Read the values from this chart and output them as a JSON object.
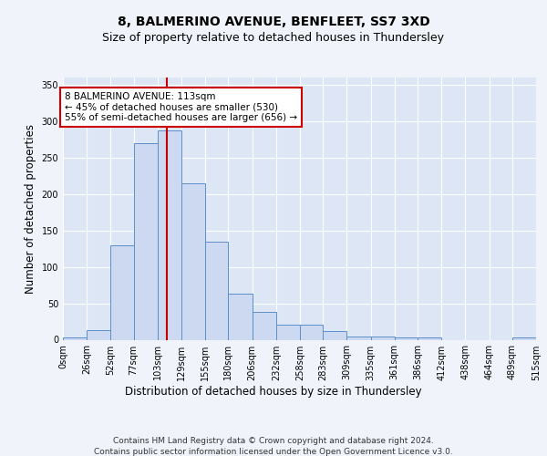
{
  "title1": "8, BALMERINO AVENUE, BENFLEET, SS7 3XD",
  "title2": "Size of property relative to detached houses in Thundersley",
  "xlabel": "Distribution of detached houses by size in Thundersley",
  "ylabel": "Number of detached properties",
  "bin_edges": [
    0,
    26,
    52,
    77,
    103,
    129,
    155,
    180,
    206,
    232,
    258,
    283,
    309,
    335,
    361,
    386,
    412,
    438,
    464,
    489,
    515
  ],
  "bar_heights": [
    3,
    13,
    130,
    270,
    288,
    215,
    135,
    63,
    38,
    21,
    21,
    12,
    4,
    5,
    3,
    3,
    0,
    0,
    0,
    3
  ],
  "bar_color": "#ccd9f0",
  "bar_edge_color": "#5b8fc9",
  "property_size": 113,
  "vline_color": "#cc0000",
  "annotation_text": "8 BALMERINO AVENUE: 113sqm\n← 45% of detached houses are smaller (530)\n55% of semi-detached houses are larger (656) →",
  "annotation_box_color": "#ffffff",
  "annotation_box_edge": "#cc0000",
  "footer1": "Contains HM Land Registry data © Crown copyright and database right 2024.",
  "footer2": "Contains public sector information licensed under the Open Government Licence v3.0.",
  "ylim": [
    0,
    360
  ],
  "yticks": [
    0,
    50,
    100,
    150,
    200,
    250,
    300,
    350
  ],
  "background_color": "#dde6f5",
  "grid_color": "#ffffff",
  "fig_background": "#f0f4fa",
  "title1_fontsize": 10,
  "title2_fontsize": 9,
  "tick_label_fontsize": 7,
  "ylabel_fontsize": 8.5,
  "xlabel_fontsize": 8.5,
  "annotation_fontsize": 7.5
}
